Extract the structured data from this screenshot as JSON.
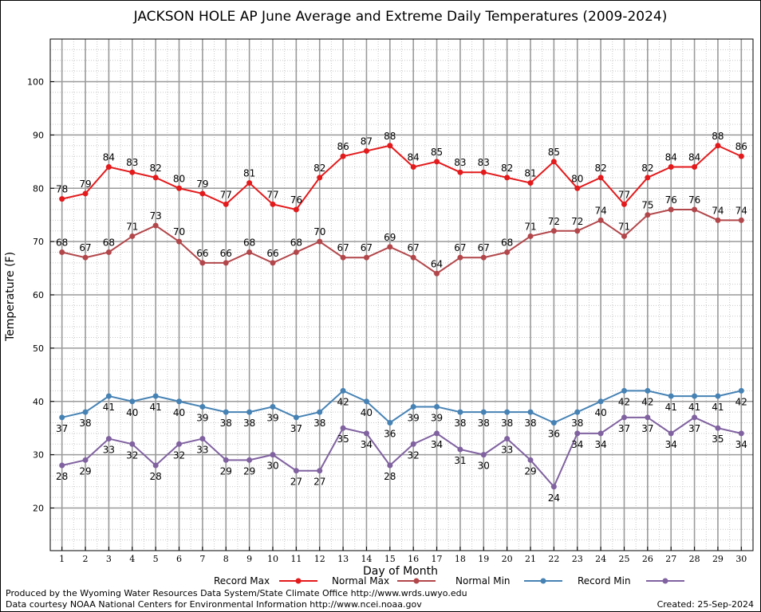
{
  "chart_data": {
    "type": "line",
    "title": "JACKSON HOLE AP June Average and Extreme Daily Temperatures (2009-2024)",
    "xlabel": "Day of Month",
    "ylabel": "Temperature (F)",
    "x": [
      1,
      2,
      3,
      4,
      5,
      6,
      7,
      8,
      9,
      10,
      11,
      12,
      13,
      14,
      15,
      16,
      17,
      18,
      19,
      20,
      21,
      22,
      23,
      24,
      25,
      26,
      27,
      28,
      29,
      30
    ],
    "xlim": [
      0.5,
      30.5
    ],
    "ylim": [
      12,
      108
    ],
    "yticks": [
      20,
      30,
      40,
      50,
      60,
      70,
      80,
      90,
      100
    ],
    "grid": true,
    "legend_position": "bottom",
    "series": [
      {
        "name": "Record Max",
        "color": "#e31a1c",
        "label_position": "above",
        "values": [
          78,
          79,
          84,
          83,
          82,
          80,
          79,
          77,
          81,
          77,
          76,
          82,
          86,
          87,
          88,
          84,
          85,
          83,
          83,
          82,
          81,
          85,
          80,
          82,
          77,
          82,
          84,
          84,
          88,
          86
        ]
      },
      {
        "name": "Normal Max",
        "color": "#b2474b",
        "label_position": "above",
        "values": [
          68,
          67,
          68,
          71,
          73,
          70,
          66,
          66,
          68,
          66,
          68,
          70,
          67,
          67,
          69,
          67,
          64,
          67,
          67,
          68,
          71,
          72,
          72,
          74,
          71,
          75,
          76,
          76,
          74,
          74
        ]
      },
      {
        "name": "Normal Min",
        "color": "#4682b4",
        "label_position": "below",
        "values": [
          37,
          38,
          41,
          40,
          41,
          40,
          39,
          38,
          38,
          39,
          37,
          38,
          42,
          40,
          36,
          39,
          39,
          38,
          38,
          38,
          38,
          36,
          38,
          40,
          42,
          42,
          41,
          41,
          41,
          42
        ]
      },
      {
        "name": "Record Min",
        "color": "#8062a0",
        "label_position": "below",
        "values": [
          28,
          29,
          33,
          32,
          28,
          32,
          33,
          29,
          29,
          30,
          27,
          27,
          35,
          34,
          28,
          32,
          34,
          31,
          30,
          33,
          29,
          24,
          34,
          34,
          37,
          37,
          34,
          37,
          35,
          34
        ]
      }
    ]
  },
  "footer": {
    "produced_by": "Produced by the Wyoming Water Resources Data System/State Climate Office http://www.wrds.uwyo.edu",
    "data_courtesy": "Data courtesy NOAA National Centers for Environmental Information http://www.ncei.noaa.gov",
    "created": "Created:  25-Sep-2024"
  }
}
